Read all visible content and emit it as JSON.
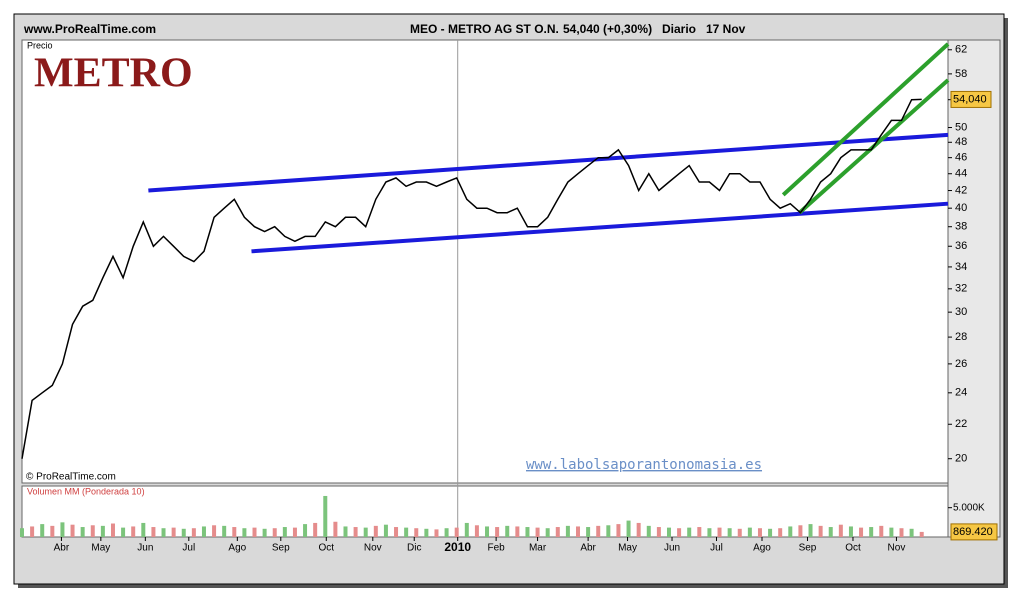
{
  "chart_data": {
    "type": "line",
    "source": "www.ProRealTime.com",
    "title": "MEO - METRO AG ST O.N.",
    "quote": "54,040 (+0,30%)",
    "period": "Diario",
    "date": "17 Nov",
    "y_label": "Precio",
    "logo": "METRO",
    "copyright": "© ProRealTime.com",
    "watermark": "www.labolsaporantonomasia.es",
    "log_scale": true,
    "color": "#000000",
    "values": [
      20,
      23.5,
      24,
      24.5,
      26,
      29,
      30.5,
      31,
      33,
      35,
      33,
      36,
      38.5,
      36,
      37,
      36,
      35,
      34.5,
      35.5,
      39,
      40,
      41,
      39,
      38,
      37.5,
      38,
      37,
      36.5,
      37,
      37,
      38.5,
      38,
      39,
      39,
      38,
      41,
      43,
      43.5,
      42.5,
      43,
      43,
      42.5,
      43,
      43.5,
      41,
      40,
      40,
      39.5,
      39.5,
      40,
      38,
      38,
      39,
      41,
      43,
      44,
      45,
      46,
      46,
      47,
      45,
      42,
      44,
      42,
      43,
      44,
      45,
      43,
      43,
      42,
      44,
      44,
      43,
      43,
      41,
      40,
      40.5,
      39.5,
      41,
      43,
      44,
      46,
      47,
      47,
      47,
      49,
      51,
      51,
      54,
      54.04
    ],
    "last_price": {
      "value": 54.04,
      "label": "54,040"
    },
    "xlim": [
      0,
      91.6
    ],
    "xticks": [
      {
        "value": 3.9,
        "label": "Abr"
      },
      {
        "value": 7.8,
        "label": "May"
      },
      {
        "value": 12.2,
        "label": "Jun"
      },
      {
        "value": 16.5,
        "label": "Jul"
      },
      {
        "value": 21.3,
        "label": "Ago"
      },
      {
        "value": 25.6,
        "label": "Sep"
      },
      {
        "value": 30.1,
        "label": "Oct"
      },
      {
        "value": 34.7,
        "label": "Nov"
      },
      {
        "value": 38.8,
        "label": "Dic"
      },
      {
        "value": 43.1,
        "label": "2010"
      },
      {
        "value": 46.9,
        "label": "Feb"
      },
      {
        "value": 51.0,
        "label": "Mar"
      },
      {
        "value": 56.0,
        "label": "Abr"
      },
      {
        "value": 59.9,
        "label": "May"
      },
      {
        "value": 64.3,
        "label": "Jun"
      },
      {
        "value": 68.7,
        "label": "Jul"
      },
      {
        "value": 73.2,
        "label": "Ago"
      },
      {
        "value": 77.7,
        "label": "Sep"
      },
      {
        "value": 82.2,
        "label": "Oct"
      },
      {
        "value": 86.5,
        "label": "Nov"
      }
    ],
    "ylim": [
      18.7,
      63.7
    ],
    "yticks": [
      20,
      22,
      24,
      26,
      28,
      30,
      32,
      34,
      36,
      38,
      40,
      42,
      44,
      46,
      48,
      50,
      54,
      58,
      62
    ],
    "trendlines": [
      {
        "color": "#1a1adb",
        "x": [
          12.5,
          91.6
        ],
        "y": [
          42,
          49
        ]
      },
      {
        "color": "#1a1adb",
        "x": [
          22.7,
          91.6
        ],
        "y": [
          35.5,
          40.5
        ]
      },
      {
        "color": "#2ca02c",
        "x": [
          75.3,
          91.6
        ],
        "y": [
          41.5,
          63
        ]
      },
      {
        "color": "#2ca02c",
        "x": [
          76.9,
          91.6
        ],
        "y": [
          39.5,
          57
        ]
      }
    ],
    "volume": {
      "label": "Volumen MM (Ponderada 10)",
      "values": [
        1500,
        1800,
        2200,
        1900,
        2500,
        2100,
        1700,
        2000,
        1900,
        2300,
        1600,
        1800,
        2400,
        1700,
        1500,
        1600,
        1400,
        1500,
        1800,
        2000,
        1900,
        1700,
        1500,
        1600,
        1400,
        1500,
        1700,
        1600,
        2200,
        2400,
        7000,
        2600,
        1800,
        1700,
        1600,
        1900,
        2100,
        1700,
        1600,
        1500,
        1400,
        1300,
        1500,
        1600,
        2400,
        2000,
        1800,
        1700,
        1900,
        1800,
        1700,
        1600,
        1500,
        1700,
        1900,
        1800,
        1700,
        1900,
        2000,
        2200,
        2800,
        2400,
        1900,
        1700,
        1600,
        1500,
        1600,
        1700,
        1500,
        1600,
        1500,
        1400,
        1600,
        1500,
        1400,
        1500,
        1800,
        2000,
        2200,
        1900,
        1700,
        2100,
        1800,
        1600,
        1700,
        1900,
        1600,
        1500,
        1400,
        869.42
      ],
      "ylim": [
        0,
        8700
      ],
      "yticks": [
        {
          "value": 5000,
          "label": "5.000K"
        }
      ],
      "last": {
        "value": 869.42,
        "label": "869.420"
      }
    }
  }
}
